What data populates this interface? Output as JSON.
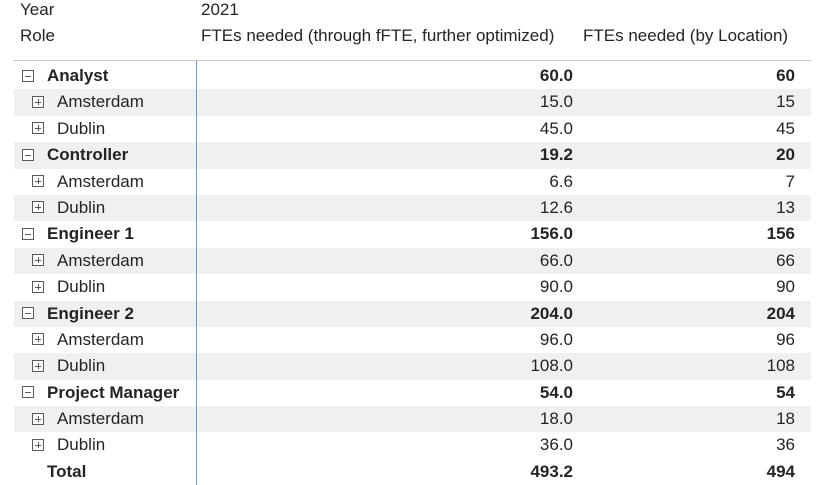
{
  "header": {
    "year_label": "Year",
    "year_value": "2021",
    "role_label": "Role",
    "col1": "FTEs needed (through fFTE, further optimized)",
    "col2": "FTEs needed (by Location)"
  },
  "rows": [
    {
      "label": "Analyst",
      "v1": "60.0",
      "v2": "60"
    },
    {
      "label": "Amsterdam",
      "v1": "15.0",
      "v2": "15"
    },
    {
      "label": "Dublin",
      "v1": "45.0",
      "v2": "45"
    },
    {
      "label": "Controller",
      "v1": "19.2",
      "v2": "20"
    },
    {
      "label": "Amsterdam",
      "v1": "6.6",
      "v2": "7"
    },
    {
      "label": "Dublin",
      "v1": "12.6",
      "v2": "13"
    },
    {
      "label": "Engineer 1",
      "v1": "156.0",
      "v2": "156"
    },
    {
      "label": "Amsterdam",
      "v1": "66.0",
      "v2": "66"
    },
    {
      "label": "Dublin",
      "v1": "90.0",
      "v2": "90"
    },
    {
      "label": "Engineer 2",
      "v1": "204.0",
      "v2": "204"
    },
    {
      "label": "Amsterdam",
      "v1": "96.0",
      "v2": "96"
    },
    {
      "label": "Dublin",
      "v1": "108.0",
      "v2": "108"
    },
    {
      "label": "Project Manager",
      "v1": "54.0",
      "v2": "54"
    },
    {
      "label": "Amsterdam",
      "v1": "18.0",
      "v2": "18"
    },
    {
      "label": "Dublin",
      "v1": "36.0",
      "v2": "36"
    }
  ],
  "total": {
    "label": "Total",
    "v1": "493.2",
    "v2": "494"
  }
}
